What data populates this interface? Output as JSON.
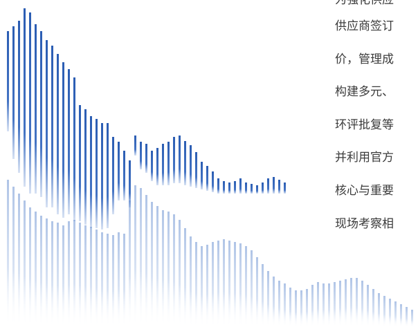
{
  "text": {
    "lines": [
      "为强化供应",
      "供应商签订",
      "价，管理成",
      "构建多元、",
      "环评批复等",
      "并利用官方",
      "核心与重要",
      "现场考察相"
    ]
  },
  "decoration": {
    "name": "blue-bar-pattern",
    "colors": {
      "upper_bars": "#2b5db3",
      "lower_bars": "#c7d6ee",
      "fade_to": "#ffffff"
    }
  }
}
